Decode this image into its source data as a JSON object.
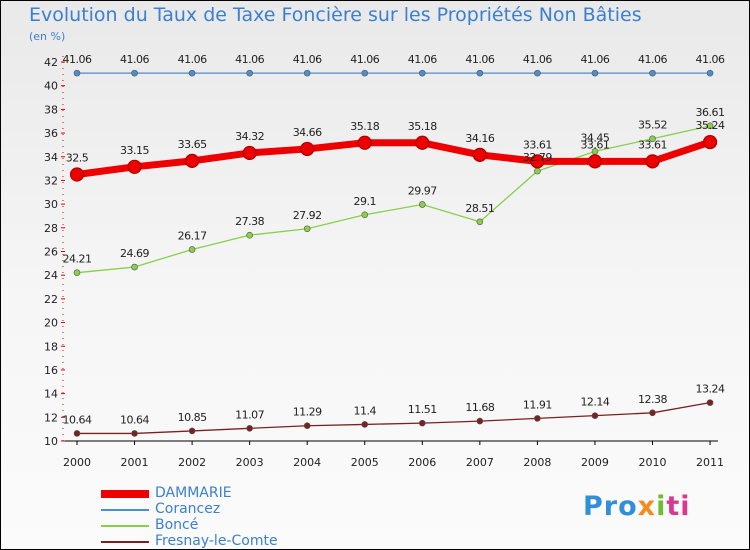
{
  "chart_data": {
    "type": "line",
    "title": "Evolution du Taux de Taxe Foncière sur les Propriétés Non Bâties",
    "unit_label": "(en %)",
    "xlabel": "",
    "ylabel": "",
    "categories": [
      "2000",
      "2001",
      "2002",
      "2003",
      "2004",
      "2005",
      "2006",
      "2007",
      "2008",
      "2009",
      "2010",
      "2011"
    ],
    "ylim": [
      10,
      42
    ],
    "yticks": [
      10,
      12,
      14,
      16,
      18,
      20,
      22,
      24,
      26,
      28,
      30,
      32,
      34,
      36,
      38,
      40,
      42
    ],
    "grid": false,
    "legend_position": "bottom-left",
    "series": [
      {
        "name": "DAMMARIE",
        "color": "#ee0000",
        "emphasis": "thick",
        "values": [
          32.5,
          33.15,
          33.65,
          34.32,
          34.66,
          35.18,
          35.18,
          34.16,
          33.61,
          33.61,
          33.61,
          35.24
        ],
        "labels": [
          "32.5",
          "33.15",
          "33.65",
          "34.32",
          "34.66",
          "35.18",
          "35.18",
          "34.16",
          "33.61",
          "33.61",
          "33.61",
          "35.24"
        ]
      },
      {
        "name": "Corancez",
        "color": "#4a8fd0",
        "emphasis": "normal",
        "values": [
          41.06,
          41.06,
          41.06,
          41.06,
          41.06,
          41.06,
          41.06,
          41.06,
          41.06,
          41.06,
          41.06,
          41.06
        ],
        "labels": [
          "41.06",
          "41.06",
          "41.06",
          "41.06",
          "41.06",
          "41.06",
          "41.06",
          "41.06",
          "41.06",
          "41.06",
          "41.06",
          "41.06"
        ]
      },
      {
        "name": "Boncé",
        "color": "#88d048",
        "emphasis": "normal",
        "values": [
          24.21,
          24.69,
          26.17,
          27.38,
          27.92,
          29.1,
          29.97,
          28.51,
          32.79,
          34.45,
          35.52,
          36.61
        ],
        "labels": [
          "24.21",
          "24.69",
          "26.17",
          "27.38",
          "27.92",
          "29.1",
          "29.97",
          "28.51",
          "32.79",
          "34.45",
          "35.52",
          "36.61"
        ]
      },
      {
        "name": "Fresnay-le-Comte",
        "color": "#7a2222",
        "emphasis": "normal",
        "values": [
          10.64,
          10.64,
          10.85,
          11.07,
          11.29,
          11.4,
          11.51,
          11.68,
          11.91,
          12.14,
          12.38,
          13.24
        ],
        "labels": [
          "10.64",
          "10.64",
          "10.85",
          "11.07",
          "11.29",
          "11.4",
          "11.51",
          "11.68",
          "11.91",
          "12.14",
          "12.38",
          "13.24"
        ]
      }
    ]
  },
  "logo": {
    "part1": "Pro",
    "part2": "x",
    "part3": "i",
    "part4": "ti"
  }
}
